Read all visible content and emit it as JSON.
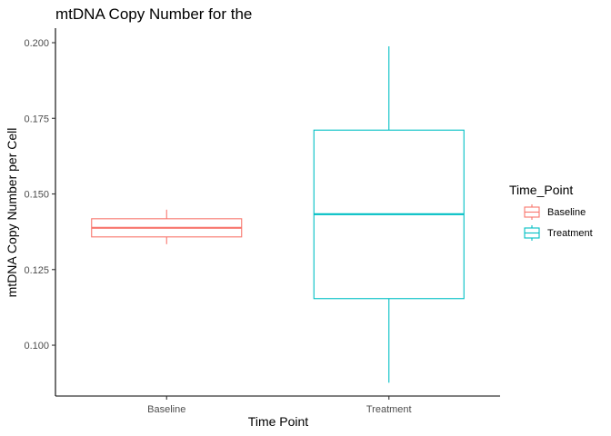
{
  "chart_data": {
    "type": "boxplot",
    "title": "mtDNA Copy Number for the",
    "xlabel": "Time Point",
    "ylabel": "mtDNA Copy Number per Cell",
    "ylim": [
      0.088,
      0.2
    ],
    "yticks": [
      0.1,
      0.125,
      0.15,
      0.175,
      0.2
    ],
    "ytick_labels": [
      "0.100",
      "0.125",
      "0.150",
      "0.175",
      "0.200"
    ],
    "categories": [
      "Baseline",
      "Treatment"
    ],
    "grid": false,
    "legend": {
      "title": "Time_Point",
      "position": "right",
      "entries": [
        "Baseline",
        "Treatment"
      ]
    },
    "colors": {
      "Baseline": "#F8766D",
      "Treatment": "#00BFC4"
    },
    "boxes": [
      {
        "category": "Baseline",
        "whisker_low": 0.1334,
        "q1": 0.1358,
        "median": 0.1388,
        "q3": 0.1418,
        "whisker_high": 0.1448
      },
      {
        "category": "Treatment",
        "whisker_low": 0.0876,
        "q1": 0.1154,
        "median": 0.1433,
        "q3": 0.1711,
        "whisker_high": 0.1988
      }
    ]
  }
}
